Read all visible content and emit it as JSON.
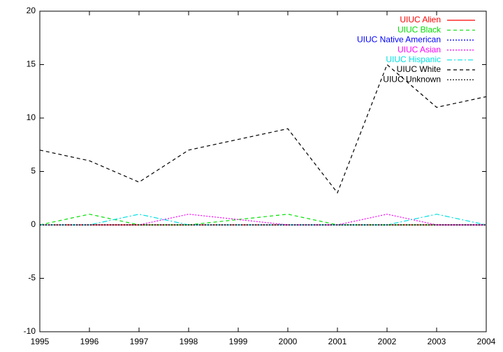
{
  "chart_data": {
    "type": "line",
    "x": [
      1995,
      1996,
      1997,
      1998,
      1999,
      2000,
      2001,
      2002,
      2003,
      2004
    ],
    "xlim": [
      1995,
      2004
    ],
    "xticks": [
      1995,
      1996,
      1997,
      1998,
      1999,
      2000,
      2001,
      2002,
      2003,
      2004
    ],
    "ylim": [
      -10,
      20
    ],
    "yticks": [
      -10,
      -5,
      0,
      5,
      10,
      15,
      20
    ],
    "grid": false,
    "legend": "top-right",
    "series": [
      {
        "name": "UIUC Alien",
        "color": "#ff0000",
        "dash": "solid",
        "values": [
          0,
          0,
          0,
          0,
          0,
          0,
          0,
          0,
          0,
          0
        ]
      },
      {
        "name": "UIUC Black",
        "color": "#00e000",
        "dash": "dashed",
        "values": [
          0,
          1,
          0,
          0,
          0.5,
          1,
          0,
          0,
          0,
          0
        ]
      },
      {
        "name": "UIUC Native American",
        "color": "#0000ff",
        "dash": "dotted",
        "values": [
          0,
          0,
          0,
          0,
          0,
          0,
          0,
          0,
          0,
          0
        ]
      },
      {
        "name": "UIUC Asian",
        "color": "#ff00ff",
        "dash": "dotted",
        "values": [
          0,
          0,
          0,
          1,
          0.5,
          0,
          0,
          1,
          0,
          0
        ]
      },
      {
        "name": "UIUC Hispanic",
        "color": "#00e0e0",
        "dash": "dashdot",
        "values": [
          0,
          0,
          1,
          0,
          0,
          0,
          0,
          0,
          1,
          0
        ]
      },
      {
        "name": "UIUC White",
        "color": "#000000",
        "dash": "dashed",
        "values": [
          7,
          6,
          4,
          7,
          8,
          9,
          3,
          15,
          11,
          12
        ]
      },
      {
        "name": "UIUC Unknown",
        "color": "#000000",
        "dash": "dotted",
        "values": [
          0,
          0,
          0,
          0,
          0,
          0,
          0,
          0,
          0,
          0
        ]
      }
    ]
  }
}
